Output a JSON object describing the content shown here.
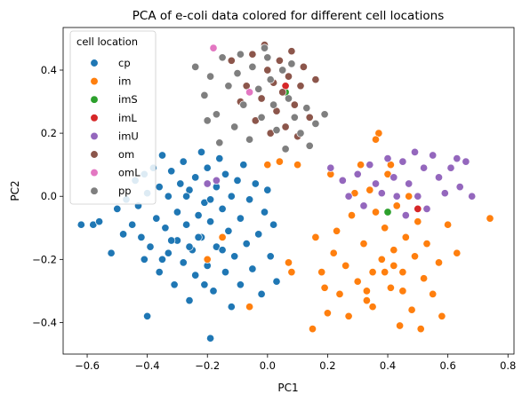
{
  "chart_data": {
    "type": "scatter",
    "title": "PCA of e-coli data colored for different cell locations",
    "xlabel": "PC1",
    "ylabel": "PC2",
    "xlim": [
      -0.68,
      0.82
    ],
    "ylim": [
      -0.5,
      0.535
    ],
    "xticks": [
      "−0.6",
      "−0.4",
      "−0.2",
      "0.0",
      "0.2",
      "0.4",
      "0.6",
      "0.8"
    ],
    "xtick_values": [
      -0.6,
      -0.4,
      -0.2,
      0.0,
      0.2,
      0.4,
      0.6,
      0.8
    ],
    "yticks": [
      "−0.4",
      "−0.2",
      "0.0",
      "0.2",
      "0.4"
    ],
    "ytick_values": [
      -0.4,
      -0.2,
      0.0,
      0.2,
      0.4
    ],
    "grid": false,
    "legend": {
      "title": "cell location",
      "position": "top-left"
    },
    "series": [
      {
        "name": "cp",
        "color": "#1f77b4",
        "points": [
          [
            -0.62,
            -0.09
          ],
          [
            -0.58,
            -0.09
          ],
          [
            -0.56,
            -0.08
          ],
          [
            -0.52,
            -0.18
          ],
          [
            -0.5,
            -0.04
          ],
          [
            -0.48,
            -0.12
          ],
          [
            -0.47,
            -0.01
          ],
          [
            -0.45,
            -0.09
          ],
          [
            -0.44,
            0.05
          ],
          [
            -0.43,
            -0.03
          ],
          [
            -0.42,
            -0.13
          ],
          [
            -0.41,
            0.07
          ],
          [
            -0.41,
            -0.2
          ],
          [
            -0.4,
            -0.38
          ],
          [
            -0.4,
            0.01
          ],
          [
            -0.39,
            -0.16
          ],
          [
            -0.38,
            0.09
          ],
          [
            -0.37,
            -0.07
          ],
          [
            -0.36,
            -0.24
          ],
          [
            -0.36,
            0.03
          ],
          [
            -0.35,
            0.13
          ],
          [
            -0.34,
            -0.1
          ],
          [
            -0.33,
            -0.18
          ],
          [
            -0.33,
            0.0
          ],
          [
            -0.32,
            0.08
          ],
          [
            -0.31,
            -0.28
          ],
          [
            -0.3,
            -0.05
          ],
          [
            -0.3,
            -0.14
          ],
          [
            -0.29,
            0.04
          ],
          [
            -0.28,
            -0.21
          ],
          [
            -0.28,
            0.11
          ],
          [
            -0.27,
            -0.09
          ],
          [
            -0.26,
            -0.33
          ],
          [
            -0.26,
            0.02
          ],
          [
            -0.25,
            -0.17
          ],
          [
            -0.24,
            0.06
          ],
          [
            -0.24,
            -0.25
          ],
          [
            -0.23,
            -0.06
          ],
          [
            -0.22,
            0.14
          ],
          [
            -0.22,
            -0.13
          ],
          [
            -0.21,
            -0.02
          ],
          [
            -0.2,
            -0.22
          ],
          [
            -0.2,
            0.09
          ],
          [
            -0.19,
            -0.45
          ],
          [
            -0.19,
            -0.08
          ],
          [
            -0.18,
            -0.3
          ],
          [
            -0.17,
            0.03
          ],
          [
            -0.17,
            -0.16
          ],
          [
            -0.16,
            0.12
          ],
          [
            -0.15,
            -0.04
          ],
          [
            -0.14,
            -0.24
          ],
          [
            -0.14,
            0.07
          ],
          [
            -0.13,
            -0.11
          ],
          [
            -0.12,
            -0.35
          ],
          [
            -0.12,
            0.0
          ],
          [
            -0.11,
            -0.19
          ],
          [
            -0.1,
            0.05
          ],
          [
            -0.09,
            -0.28
          ],
          [
            -0.09,
            -0.07
          ],
          [
            -0.08,
            0.1
          ],
          [
            -0.07,
            -0.15
          ],
          [
            -0.06,
            -0.01
          ],
          [
            -0.05,
            -0.23
          ],
          [
            -0.04,
            0.04
          ],
          [
            -0.03,
            -0.12
          ],
          [
            -0.02,
            -0.31
          ],
          [
            -0.01,
            -0.05
          ],
          [
            0.0,
            0.02
          ],
          [
            0.01,
            -0.19
          ],
          [
            0.02,
            -0.09
          ],
          [
            0.03,
            -0.27
          ],
          [
            -0.35,
            -0.2
          ],
          [
            -0.32,
            -0.14
          ],
          [
            -0.27,
            0.0
          ],
          [
            -0.23,
            -0.13
          ],
          [
            -0.19,
            -0.01
          ],
          [
            -0.26,
            -0.16
          ],
          [
            -0.21,
            -0.28
          ],
          [
            -0.15,
            -0.17
          ]
        ]
      },
      {
        "name": "im",
        "color": "#ff7f0e",
        "points": [
          [
            -0.2,
            -0.2
          ],
          [
            -0.15,
            -0.13
          ],
          [
            -0.06,
            -0.35
          ],
          [
            0.0,
            0.1
          ],
          [
            0.04,
            0.11
          ],
          [
            0.07,
            -0.21
          ],
          [
            0.08,
            -0.24
          ],
          [
            0.1,
            0.1
          ],
          [
            0.15,
            -0.42
          ],
          [
            0.16,
            -0.13
          ],
          [
            0.18,
            -0.24
          ],
          [
            0.19,
            -0.29
          ],
          [
            0.2,
            -0.37
          ],
          [
            0.21,
            0.07
          ],
          [
            0.22,
            -0.18
          ],
          [
            0.23,
            -0.11
          ],
          [
            0.24,
            -0.31
          ],
          [
            0.25,
            0.05
          ],
          [
            0.26,
            -0.22
          ],
          [
            0.27,
            -0.38
          ],
          [
            0.28,
            -0.06
          ],
          [
            0.29,
            0.01
          ],
          [
            0.3,
            -0.27
          ],
          [
            0.31,
            0.1
          ],
          [
            0.32,
            -0.15
          ],
          [
            0.33,
            -0.33
          ],
          [
            0.34,
            0.02
          ],
          [
            0.35,
            -0.24
          ],
          [
            0.36,
            -0.05
          ],
          [
            0.37,
            0.2
          ],
          [
            0.38,
            -0.2
          ],
          [
            0.39,
            -0.1
          ],
          [
            0.4,
            0.07
          ],
          [
            0.41,
            -0.29
          ],
          [
            0.42,
            -0.17
          ],
          [
            0.43,
            -0.03
          ],
          [
            0.44,
            -0.41
          ],
          [
            0.45,
            -0.24
          ],
          [
            0.46,
            -0.13
          ],
          [
            0.47,
            0.0
          ],
          [
            0.48,
            -0.36
          ],
          [
            0.49,
            -0.19
          ],
          [
            0.5,
            -0.08
          ],
          [
            0.51,
            -0.42
          ],
          [
            0.52,
            -0.26
          ],
          [
            0.53,
            -0.15
          ],
          [
            0.55,
            -0.31
          ],
          [
            0.57,
            -0.21
          ],
          [
            0.58,
            -0.38
          ],
          [
            0.6,
            -0.09
          ],
          [
            0.63,
            -0.18
          ],
          [
            0.74,
            -0.07
          ],
          [
            0.36,
            0.18
          ],
          [
            0.41,
            0.1
          ],
          [
            0.33,
            -0.3
          ],
          [
            0.39,
            -0.24
          ],
          [
            0.45,
            -0.3
          ],
          [
            0.35,
            -0.35
          ],
          [
            0.42,
            -0.22
          ]
        ]
      },
      {
        "name": "imS",
        "color": "#2ca02c",
        "points": [
          [
            0.06,
            0.33
          ],
          [
            0.4,
            -0.05
          ]
        ]
      },
      {
        "name": "imL",
        "color": "#d62728",
        "points": [
          [
            0.06,
            0.35
          ],
          [
            0.5,
            -0.04
          ]
        ]
      },
      {
        "name": "imU",
        "color": "#9467bd",
        "points": [
          [
            -0.2,
            0.04
          ],
          [
            -0.17,
            0.05
          ],
          [
            0.21,
            0.09
          ],
          [
            0.25,
            0.05
          ],
          [
            0.27,
            0.0
          ],
          [
            0.3,
            0.07
          ],
          [
            0.32,
            -0.03
          ],
          [
            0.34,
            0.1
          ],
          [
            0.36,
            0.04
          ],
          [
            0.38,
            0.01
          ],
          [
            0.4,
            0.12
          ],
          [
            0.42,
            0.06
          ],
          [
            0.43,
            0.0
          ],
          [
            0.45,
            0.11
          ],
          [
            0.46,
            -0.06
          ],
          [
            0.47,
            0.04
          ],
          [
            0.49,
            0.14
          ],
          [
            0.5,
            0.0
          ],
          [
            0.52,
            0.09
          ],
          [
            0.53,
            -0.04
          ],
          [
            0.55,
            0.13
          ],
          [
            0.57,
            0.06
          ],
          [
            0.59,
            0.01
          ],
          [
            0.61,
            0.09
          ],
          [
            0.63,
            0.12
          ],
          [
            0.64,
            0.03
          ],
          [
            0.66,
            0.11
          ],
          [
            0.68,
            0.0
          ]
        ]
      },
      {
        "name": "om",
        "color": "#8c564b",
        "points": [
          [
            -0.07,
            0.35
          ],
          [
            -0.05,
            0.45
          ],
          [
            -0.04,
            0.24
          ],
          [
            -0.02,
            0.31
          ],
          [
            -0.01,
            0.48
          ],
          [
            0.0,
            0.4
          ],
          [
            0.01,
            0.2
          ],
          [
            0.02,
            0.36
          ],
          [
            0.03,
            0.27
          ],
          [
            0.04,
            0.43
          ],
          [
            0.05,
            0.33
          ],
          [
            0.06,
            0.22
          ],
          [
            0.07,
            0.38
          ],
          [
            0.08,
            0.46
          ],
          [
            0.09,
            0.29
          ],
          [
            0.1,
            0.19
          ],
          [
            0.11,
            0.35
          ],
          [
            0.12,
            0.41
          ],
          [
            0.14,
            0.25
          ],
          [
            0.16,
            0.37
          ],
          [
            -0.09,
            0.3
          ],
          [
            -0.12,
            0.43
          ]
        ]
      },
      {
        "name": "omL",
        "color": "#e377c2",
        "points": [
          [
            -0.18,
            0.47
          ],
          [
            -0.06,
            0.33
          ]
        ]
      },
      {
        "name": "pp",
        "color": "#7f7f7f",
        "points": [
          [
            -0.24,
            0.41
          ],
          [
            -0.21,
            0.32
          ],
          [
            -0.19,
            0.38
          ],
          [
            -0.17,
            0.26
          ],
          [
            -0.15,
            0.44
          ],
          [
            -0.13,
            0.35
          ],
          [
            -0.11,
            0.22
          ],
          [
            -0.1,
            0.39
          ],
          [
            -0.08,
            0.29
          ],
          [
            -0.06,
            0.18
          ],
          [
            -0.05,
            0.41
          ],
          [
            -0.03,
            0.34
          ],
          [
            -0.02,
            0.25
          ],
          [
            0.0,
            0.44
          ],
          [
            0.01,
            0.37
          ],
          [
            0.02,
            0.29
          ],
          [
            0.03,
            0.21
          ],
          [
            0.05,
            0.4
          ],
          [
            0.06,
            0.15
          ],
          [
            0.07,
            0.31
          ],
          [
            0.09,
            0.25
          ],
          [
            0.11,
            0.2
          ],
          [
            0.13,
            0.28
          ],
          [
            0.16,
            0.23
          ],
          [
            0.19,
            0.26
          ],
          [
            -0.2,
            0.24
          ],
          [
            -0.16,
            0.17
          ],
          [
            -0.09,
            0.45
          ],
          [
            -0.01,
            0.47
          ],
          [
            0.08,
            0.42
          ],
          [
            0.14,
            0.16
          ]
        ]
      }
    ]
  }
}
